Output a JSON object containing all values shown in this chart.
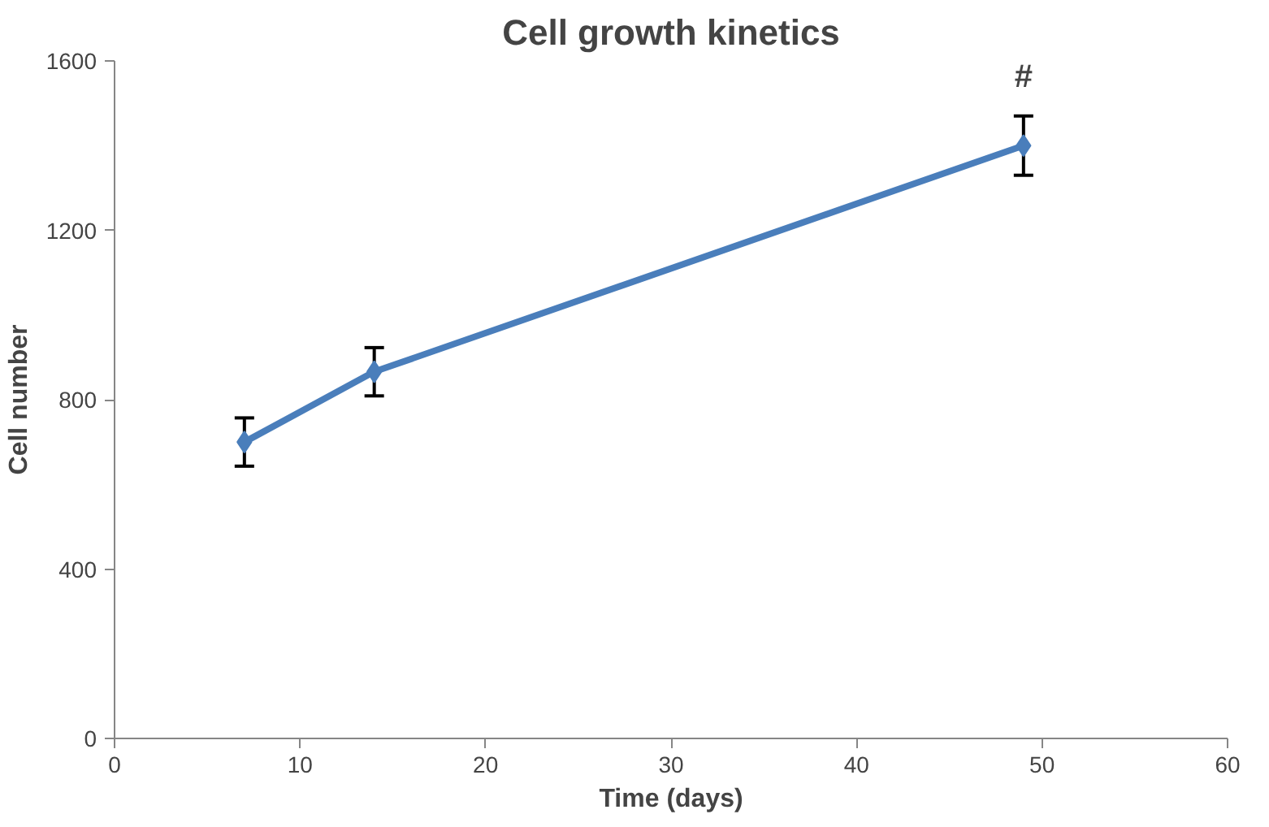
{
  "chart_data": {
    "type": "line",
    "title": "Cell growth kinetics",
    "xlabel": "Time (days)",
    "ylabel": "Cell number",
    "x": [
      7,
      14,
      49
    ],
    "series": [
      {
        "color": "#4a7ebb",
        "values": [
          700,
          866,
          1400
        ],
        "errors": [
          57,
          57,
          70
        ]
      }
    ],
    "xlim": [
      0,
      60
    ],
    "xticks": [
      0,
      10,
      20,
      30,
      40,
      50,
      60
    ],
    "ylim": [
      0,
      1600
    ],
    "yticks": [
      0,
      400,
      800,
      1200,
      1600
    ],
    "annotations": [
      {
        "text": "#",
        "x": 49,
        "y": 1473
      }
    ],
    "grid": false,
    "marker": "diamond",
    "line_style": "solid"
  }
}
